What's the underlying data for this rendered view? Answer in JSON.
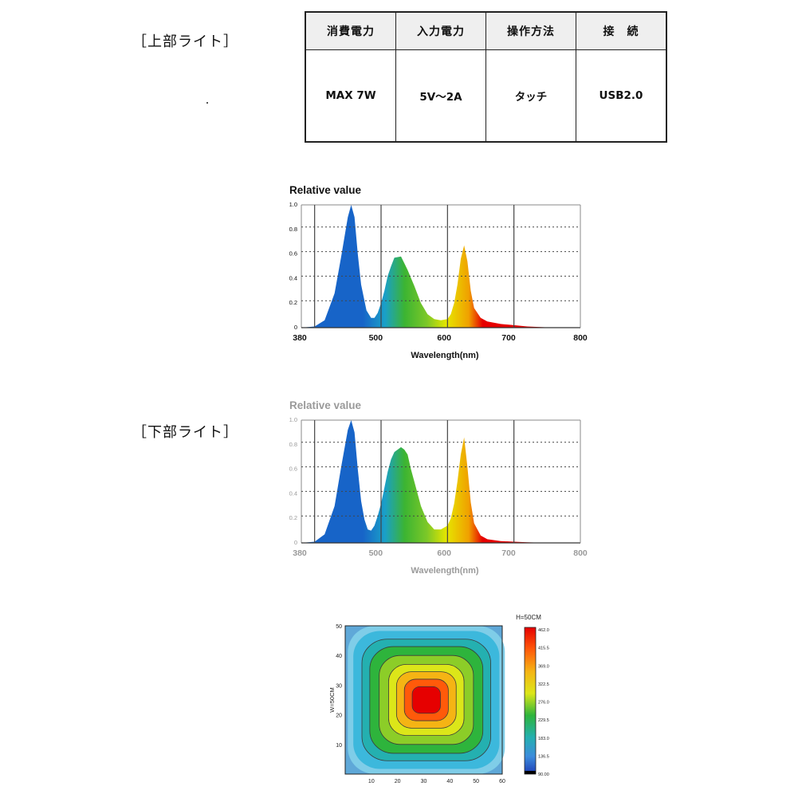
{
  "labels": {
    "upper": "［上部ライト］",
    "lower": "［下部ライト］"
  },
  "spec_table": {
    "headers": [
      "消費電力",
      "入力電力",
      "操作方法",
      "接　続"
    ],
    "values": [
      "MAX 7W",
      "5V～2A",
      "タッチ",
      "USB2.0"
    ]
  },
  "colors": {
    "blue": "#1764c8",
    "green": "#3cb432",
    "yellow": "#e6e600",
    "red": "#e60000",
    "grid": "#444444",
    "upper_text": "#111111",
    "lower_text": "#9a9a9a"
  },
  "chart_data": [
    {
      "type": "area",
      "title": "Relative value",
      "xlabel": "Wavelength(nm)",
      "ylabel": "",
      "xlim": [
        380,
        800
      ],
      "ylim": [
        0,
        1.0
      ],
      "x_ticks": [
        "380",
        "500",
        "600",
        "700",
        "800"
      ],
      "y_ticks": [
        "0",
        "0.2",
        "0.4",
        "0.6",
        "0.8",
        "1.0"
      ],
      "series": [
        {
          "x": [
            380,
            400,
            415,
            430,
            440,
            450,
            455,
            460,
            465,
            470,
            478,
            485,
            490,
            495,
            500,
            505,
            510,
            515,
            520,
            530,
            540,
            550,
            560,
            570,
            580,
            590,
            600,
            605,
            610,
            615,
            620,
            625,
            630,
            635,
            640,
            650,
            660,
            680,
            700,
            720,
            740,
            760,
            800
          ],
          "y": [
            0,
            0.01,
            0.06,
            0.28,
            0.58,
            0.9,
            1.0,
            0.9,
            0.6,
            0.35,
            0.14,
            0.08,
            0.08,
            0.12,
            0.2,
            0.3,
            0.42,
            0.5,
            0.57,
            0.58,
            0.47,
            0.34,
            0.2,
            0.11,
            0.07,
            0.06,
            0.07,
            0.11,
            0.2,
            0.35,
            0.56,
            0.67,
            0.54,
            0.3,
            0.16,
            0.08,
            0.05,
            0.03,
            0.02,
            0.01,
            0.005,
            0,
            0
          ]
        }
      ]
    },
    {
      "type": "area",
      "title": "Relative value",
      "xlabel": "Wavelength(nm)",
      "ylabel": "",
      "xlim": [
        380,
        800
      ],
      "ylim": [
        0,
        1.0
      ],
      "x_ticks": [
        "380",
        "500",
        "600",
        "700",
        "800"
      ],
      "y_ticks": [
        "0",
        "0.2",
        "0.4",
        "0.6",
        "0.8",
        "1.0"
      ],
      "series": [
        {
          "x": [
            380,
            400,
            415,
            430,
            440,
            450,
            455,
            460,
            465,
            470,
            475,
            480,
            485,
            490,
            495,
            500,
            505,
            510,
            515,
            520,
            525,
            530,
            535,
            540,
            545,
            550,
            560,
            570,
            580,
            590,
            600,
            605,
            610,
            615,
            620,
            625,
            630,
            635,
            640,
            650,
            660,
            680,
            700,
            720,
            750,
            800
          ],
          "y": [
            0,
            0.01,
            0.07,
            0.3,
            0.62,
            0.92,
            1.0,
            0.9,
            0.6,
            0.34,
            0.19,
            0.11,
            0.1,
            0.14,
            0.22,
            0.32,
            0.45,
            0.58,
            0.68,
            0.74,
            0.76,
            0.78,
            0.76,
            0.72,
            0.6,
            0.5,
            0.3,
            0.17,
            0.11,
            0.11,
            0.14,
            0.2,
            0.32,
            0.5,
            0.72,
            0.86,
            0.62,
            0.33,
            0.16,
            0.06,
            0.03,
            0.015,
            0.01,
            0.005,
            0,
            0
          ]
        }
      ]
    },
    {
      "type": "heatmap",
      "title": "H=50CM",
      "xlabel": "",
      "ylabel": "W=50CM",
      "xlim": [
        0,
        60
      ],
      "ylim": [
        0,
        50
      ],
      "x_ticks": [
        "10",
        "20",
        "30",
        "40",
        "50",
        "60"
      ],
      "y_ticks": [
        "10",
        "20",
        "30",
        "40",
        "50"
      ],
      "colorbar_ticks": [
        "462.0",
        "415.5",
        "369.0",
        "322.5",
        "276.0",
        "229.5",
        "183.0",
        "136.5",
        "90.00"
      ],
      "colorbar_range": [
        90.0,
        462.0
      ],
      "center": [
        31,
        25
      ],
      "max_value": 462.0,
      "min_value": 90.0
    }
  ]
}
